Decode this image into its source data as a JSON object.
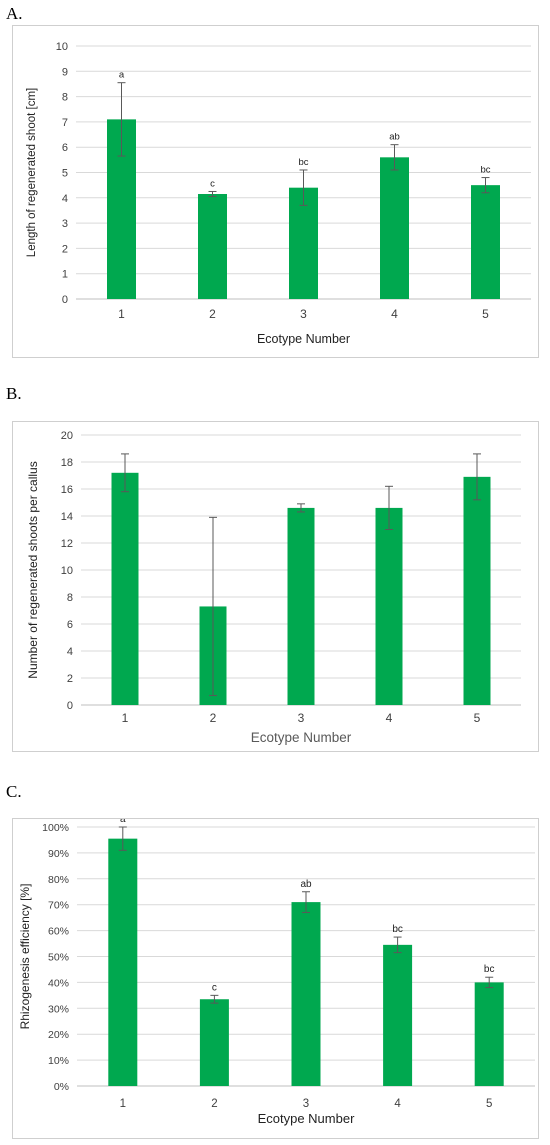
{
  "colors": {
    "bar": "#00a84f",
    "grid": "#d9d9d9",
    "axis": "#bfbfbf",
    "text": "#404040",
    "errorbar": "#595959"
  },
  "chart_data": [
    {
      "panel": "A.",
      "type": "bar",
      "ylabel": "Length of regenerated shoot [cm]",
      "xlabel": "Ecotype Number",
      "categories": [
        "1",
        "2",
        "3",
        "4",
        "5"
      ],
      "values": [
        7.1,
        4.15,
        4.4,
        5.6,
        4.5
      ],
      "errors": [
        1.45,
        0.1,
        0.7,
        0.5,
        0.3
      ],
      "labels": [
        "a",
        "c",
        "bc",
        "ab",
        "bc"
      ],
      "ylim": [
        0,
        10
      ],
      "yticks": [
        0,
        1,
        2,
        3,
        4,
        5,
        6,
        7,
        8,
        9,
        10
      ],
      "ytick_labels": [
        "0",
        "1",
        "2",
        "3",
        "4",
        "5",
        "6",
        "7",
        "8",
        "9",
        "10"
      ],
      "grid": true
    },
    {
      "panel": "B.",
      "type": "bar",
      "ylabel": "Number of regenerated shoots per callus",
      "xlabel": "Ecotype Number",
      "categories": [
        "1",
        "2",
        "3",
        "4",
        "5"
      ],
      "values": [
        17.2,
        7.3,
        14.6,
        14.6,
        16.9
      ],
      "errors": [
        1.4,
        6.6,
        0.3,
        1.6,
        1.7
      ],
      "labels": [],
      "ylim": [
        0,
        20
      ],
      "yticks": [
        0,
        2,
        4,
        6,
        8,
        10,
        12,
        14,
        16,
        18,
        20
      ],
      "ytick_labels": [
        "0",
        "2",
        "4",
        "6",
        "8",
        "10",
        "12",
        "14",
        "16",
        "18",
        "20"
      ],
      "grid": true
    },
    {
      "panel": "C.",
      "type": "bar",
      "ylabel": "Rhizogenesis efficiency [%]",
      "xlabel": "Ecotype Number",
      "categories": [
        "1",
        "2",
        "3",
        "4",
        "5"
      ],
      "values": [
        95.5,
        33.5,
        71,
        54.5,
        40
      ],
      "errors": [
        4.5,
        1.5,
        4,
        3,
        2
      ],
      "labels": [
        "a",
        "c",
        "ab",
        "bc",
        "bc"
      ],
      "ylim": [
        0,
        100
      ],
      "yticks": [
        0,
        10,
        20,
        30,
        40,
        50,
        60,
        70,
        80,
        90,
        100
      ],
      "ytick_labels": [
        "0%",
        "10%",
        "20%",
        "30%",
        "40%",
        "50%",
        "60%",
        "70%",
        "80%",
        "90%",
        "100%"
      ],
      "grid": true
    }
  ]
}
